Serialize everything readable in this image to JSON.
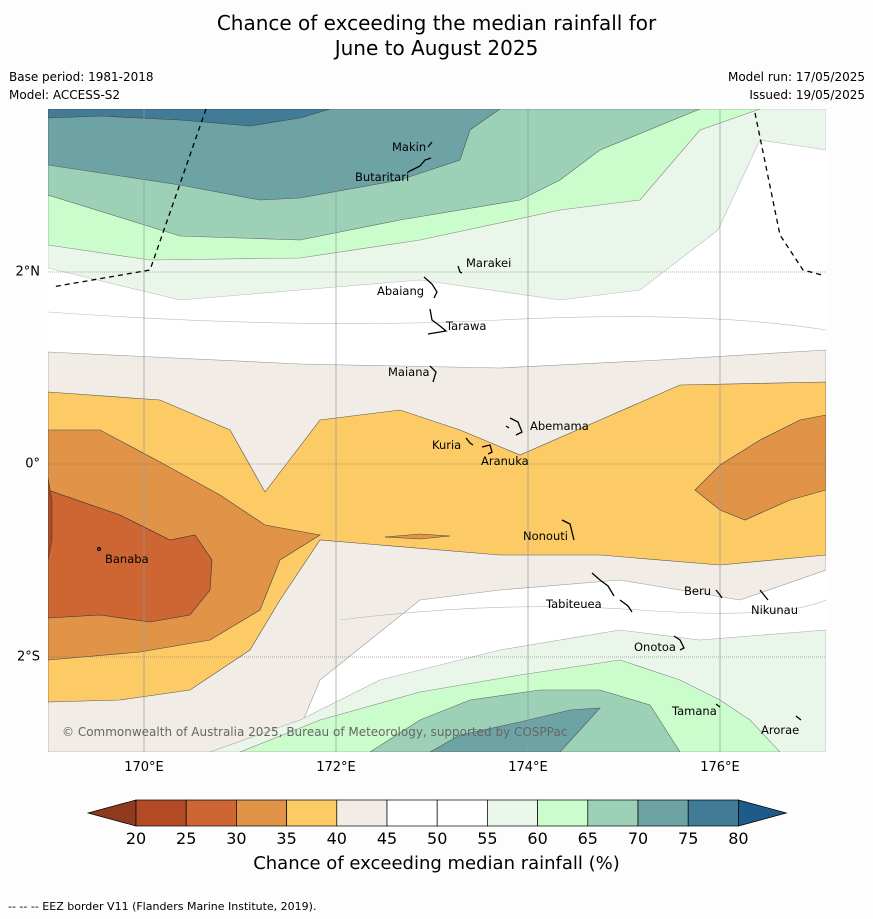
{
  "title_line1": "Chance of exceeding the median rainfall for",
  "title_line2": "June to August 2025",
  "meta_left": {
    "base_period": "Base period: 1981-2018",
    "model": "Model: ACCESS-S2"
  },
  "meta_right": {
    "model_run": "Model run: 17/05/2025",
    "issued": "Issued: 19/05/2025"
  },
  "lat_labels": [
    "2°N",
    "0°",
    "2°S"
  ],
  "lon_labels": [
    "170°E",
    "172°E",
    "174°E",
    "176°E"
  ],
  "islands": [
    "Makin",
    "Butaritari",
    "Marakei",
    "Abaiang",
    "Tarawa",
    "Maiana",
    "Abemama",
    "Kuria",
    "Aranuka",
    "Nonouti",
    "Banaba",
    "Tabiteuea",
    "Beru",
    "Nikunau",
    "Onotoa",
    "Tamana",
    "Arorae"
  ],
  "copyright": "© Commonwealth of Australia 2025, Bureau of Meteorology, supported by COSPPac",
  "colorbar": {
    "ticks": [
      "20",
      "25",
      "30",
      "35",
      "40",
      "45",
      "50",
      "55",
      "60",
      "65",
      "70",
      "75",
      "80"
    ],
    "colors": [
      "#8e3a1e",
      "#b24a26",
      "#cd6633",
      "#e19448",
      "#fdcb66",
      "#f1ece6",
      "#ffffff",
      "#ffffff",
      "#ebf6ea",
      "#cbfdcc",
      "#9cd1b8",
      "#6ea3a5",
      "#427b95",
      "#1d5b8b"
    ],
    "label": "Chance of exceeding median rainfall (%)"
  },
  "footnote": "--  --  -- EEZ border V11 (Flanders Marine Institute, 2019)."
}
